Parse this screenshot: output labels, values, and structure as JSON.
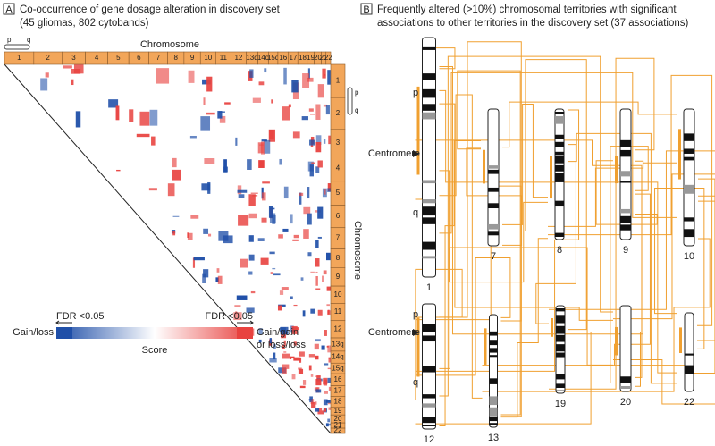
{
  "panel_a": {
    "letter": "A",
    "title": [
      "Co-occurrence of gene dosage alteration in discovery set",
      "(45 gliomas, 802 cytobands)"
    ],
    "axis_label_top": "Chromosome",
    "axis_label_right": "Chromosome",
    "arm_labels": [
      "p",
      "q"
    ],
    "chromosomes_top": [
      "1",
      "2",
      "3",
      "4",
      "5",
      "6",
      "7",
      "8",
      "9",
      "10",
      "11",
      "12",
      "13q",
      "14q",
      "15q",
      "16",
      "17",
      "18",
      "19",
      "20",
      "21",
      "22"
    ],
    "chromosomes_right": [
      "1",
      "2",
      "3",
      "4",
      "5",
      "6",
      "7",
      "8",
      "9",
      "10",
      "11",
      "12",
      "13q",
      "14q",
      "15q",
      "16",
      "17",
      "18",
      "19",
      "20",
      "21",
      "22"
    ],
    "legend": {
      "left_threshold": "FDR <0.05",
      "right_threshold": "FDR <0.05",
      "left_label": "Gain/loss",
      "right_label": [
        "Gain/gain",
        "or loss/loss"
      ],
      "scale_label": "Score"
    }
  },
  "panel_b": {
    "letter": "B",
    "title": [
      "Frequently altered (>10%) chromosomal territories with significant",
      "associations to other territories in the discovery set (37 associations)"
    ],
    "centromere_label": [
      "Centromere",
      "Centromere"
    ],
    "arm_labels": [
      "p",
      "q",
      "p",
      "q"
    ],
    "chromosomes": [
      "1",
      "7",
      "8",
      "9",
      "10",
      "12",
      "13",
      "19",
      "20",
      "22"
    ]
  }
}
